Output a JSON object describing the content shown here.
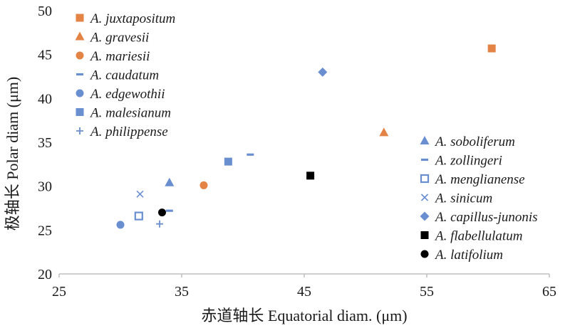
{
  "chart_data": {
    "type": "scatter",
    "xlabel": "赤道轴长 Equatorial diam. (μm)",
    "ylabel": "极轴长 Polar diam (μm)",
    "xlim": [
      25,
      65
    ],
    "ylim": [
      20,
      50
    ],
    "x_ticks": [
      "25",
      "35",
      "45",
      "55",
      "65"
    ],
    "y_ticks": [
      "20",
      "25",
      "30",
      "35",
      "40",
      "45",
      "50"
    ],
    "grid": false,
    "series": [
      {
        "name": "A. juxtapositum",
        "marker": "square",
        "color": "#e38345",
        "points": [
          [
            60.3,
            45.7
          ]
        ]
      },
      {
        "name": "A. gravesii",
        "marker": "triangle",
        "color": "#e38345",
        "points": [
          [
            51.5,
            36.1
          ]
        ]
      },
      {
        "name": "A. mariesii",
        "marker": "circle",
        "color": "#e38345",
        "points": [
          [
            36.8,
            30.1
          ]
        ]
      },
      {
        "name": "A. caudatum",
        "marker": "dash",
        "color": "#6a8fd1",
        "points": [
          [
            40.6,
            33.6
          ]
        ]
      },
      {
        "name": "A. edgewothii",
        "marker": "circle",
        "color": "#6a8fd1",
        "points": [
          [
            30.0,
            25.6
          ]
        ]
      },
      {
        "name": "A. malesianum",
        "marker": "square",
        "color": "#6a8fd1",
        "points": [
          [
            38.8,
            32.8
          ]
        ]
      },
      {
        "name": "A. philippense",
        "marker": "plus",
        "color": "#6a8fd1",
        "points": [
          [
            33.2,
            25.7
          ]
        ]
      },
      {
        "name": "A. soboliferum",
        "marker": "triangle",
        "color": "#6a8fd1",
        "points": [
          [
            34.0,
            30.4
          ]
        ]
      },
      {
        "name": "A. zollingeri",
        "marker": "dash",
        "color": "#6a8fd1",
        "points": [
          [
            34.0,
            27.2
          ]
        ]
      },
      {
        "name": "A. menglianense",
        "marker": "open-square",
        "color": "#6a8fd1",
        "points": [
          [
            31.5,
            26.6
          ]
        ]
      },
      {
        "name": "A. sinicum",
        "marker": "x",
        "color": "#6a8fd1",
        "points": [
          [
            31.6,
            29.1
          ]
        ]
      },
      {
        "name": "A. capillus-junonis",
        "marker": "diamond",
        "color": "#6a8fd1",
        "points": [
          [
            46.5,
            43.0
          ]
        ]
      },
      {
        "name": "A. flabellulatum",
        "marker": "square",
        "color": "#000000",
        "points": [
          [
            45.5,
            31.2
          ]
        ]
      },
      {
        "name": "A. latifolium",
        "marker": "circle",
        "color": "#000000",
        "points": [
          [
            33.4,
            27.0
          ]
        ]
      }
    ],
    "legend_groups": [
      {
        "position": "top-left",
        "series": [
          "A. juxtapositum",
          "A. gravesii",
          "A. mariesii",
          "A. caudatum",
          "A. edgewothii",
          "A. malesianum",
          "A. philippense"
        ]
      },
      {
        "position": "bottom-right",
        "series": [
          "A. soboliferum",
          "A. zollingeri",
          "A. menglianense",
          "A. sinicum",
          "A. capillus-junonis",
          "A. flabellulatum",
          "A. latifolium"
        ]
      }
    ]
  }
}
